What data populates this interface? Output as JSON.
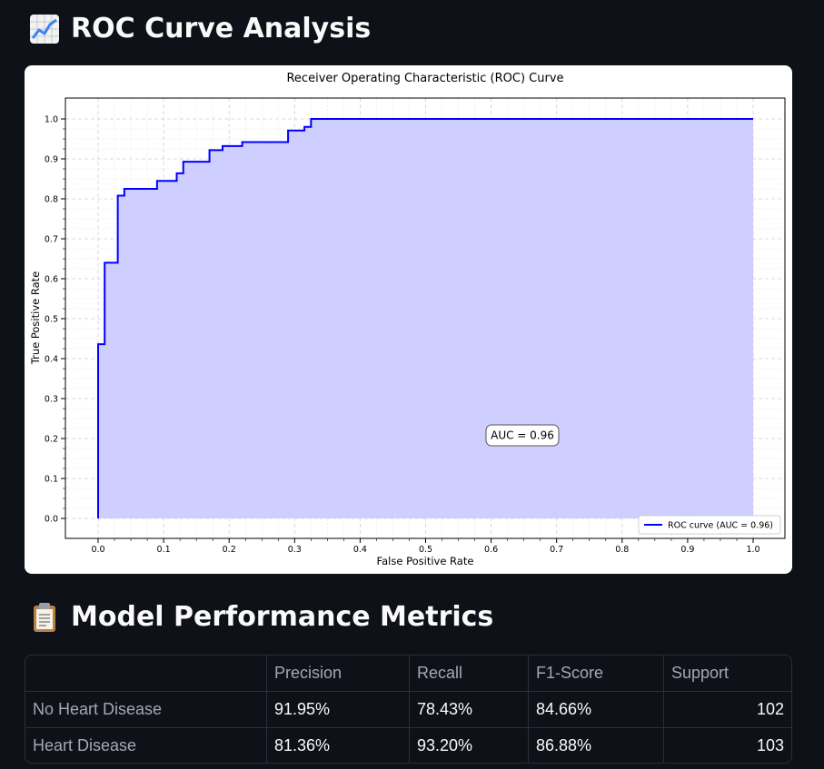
{
  "sections": {
    "roc_title": "ROC Curve Analysis",
    "metrics_title": "Model Performance Metrics"
  },
  "chart_data": {
    "type": "line",
    "title": "Receiver Operating Characteristic (ROC) Curve",
    "xlabel": "False Positive Rate",
    "ylabel": "True Positive Rate",
    "xlim": [
      0.0,
      1.0
    ],
    "ylim": [
      0.0,
      1.0
    ],
    "xticks": [
      "0.0",
      "0.1",
      "0.2",
      "0.3",
      "0.4",
      "0.5",
      "0.6",
      "0.7",
      "0.8",
      "0.9",
      "1.0"
    ],
    "yticks": [
      "0.0",
      "0.1",
      "0.2",
      "0.3",
      "0.4",
      "0.5",
      "0.6",
      "0.7",
      "0.8",
      "0.9",
      "1.0"
    ],
    "grid": true,
    "legend_position": "bottom-right",
    "annotation": "AUC = 0.96",
    "series": [
      {
        "name": "ROC curve (AUC = 0.96)",
        "color": "#0000ff",
        "fill_color": "#ccccff",
        "points": [
          [
            0.0,
            0.0
          ],
          [
            0.0,
            0.436
          ],
          [
            0.01,
            0.436
          ],
          [
            0.01,
            0.64
          ],
          [
            0.03,
            0.64
          ],
          [
            0.03,
            0.808
          ],
          [
            0.04,
            0.808
          ],
          [
            0.04,
            0.825
          ],
          [
            0.09,
            0.825
          ],
          [
            0.09,
            0.845
          ],
          [
            0.12,
            0.845
          ],
          [
            0.12,
            0.864
          ],
          [
            0.13,
            0.864
          ],
          [
            0.13,
            0.893
          ],
          [
            0.17,
            0.893
          ],
          [
            0.17,
            0.922
          ],
          [
            0.19,
            0.922
          ],
          [
            0.19,
            0.932
          ],
          [
            0.22,
            0.932
          ],
          [
            0.22,
            0.942
          ],
          [
            0.29,
            0.942
          ],
          [
            0.29,
            0.971
          ],
          [
            0.315,
            0.971
          ],
          [
            0.315,
            0.98
          ],
          [
            0.325,
            0.98
          ],
          [
            0.325,
            1.0
          ],
          [
            1.0,
            1.0
          ]
        ]
      }
    ]
  },
  "metrics_table": {
    "columns": [
      "",
      "Precision",
      "Recall",
      "F1-Score",
      "Support"
    ],
    "rows": [
      [
        "No Heart Disease",
        "91.95%",
        "78.43%",
        "84.66%",
        "102"
      ],
      [
        "Heart Disease",
        "81.36%",
        "93.20%",
        "86.88%",
        "103"
      ]
    ]
  }
}
